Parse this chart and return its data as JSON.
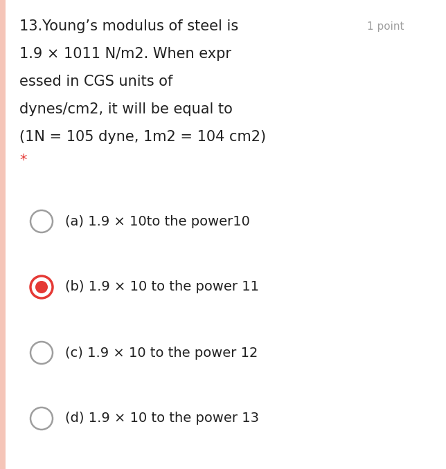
{
  "bg_color": "#ffffff",
  "left_bar_color": "#f5c5b8",
  "question_number": "13.",
  "question_text_line1": "Young’s modulus of steel is",
  "question_text_line2": "1.9 × 1011 N/m2. When expr",
  "question_text_line3": "essed in CGS units of",
  "question_text_line4": "dynes/cm2, it will be equal to",
  "question_text_line5": "(1N = 105 dyne, 1m2 = 104 cm2)",
  "asterisk": "*",
  "point_label": "1 point",
  "options": [
    {
      "label": "(a) 1.9 × 10to the power10",
      "selected": false
    },
    {
      "label": "(b) 1.9 × 10 to the power 11",
      "selected": true
    },
    {
      "label": "(c) 1.9 × 10 to the power 12",
      "selected": false
    },
    {
      "label": "(d) 1.9 × 10 to the power 13",
      "selected": false
    }
  ],
  "font_size_question": 15,
  "font_size_options": 14,
  "font_size_point": 11,
  "text_color": "#212121",
  "gray_color": "#9e9e9e",
  "red_color": "#e53935",
  "unselected_stroke": "#9e9e9e"
}
